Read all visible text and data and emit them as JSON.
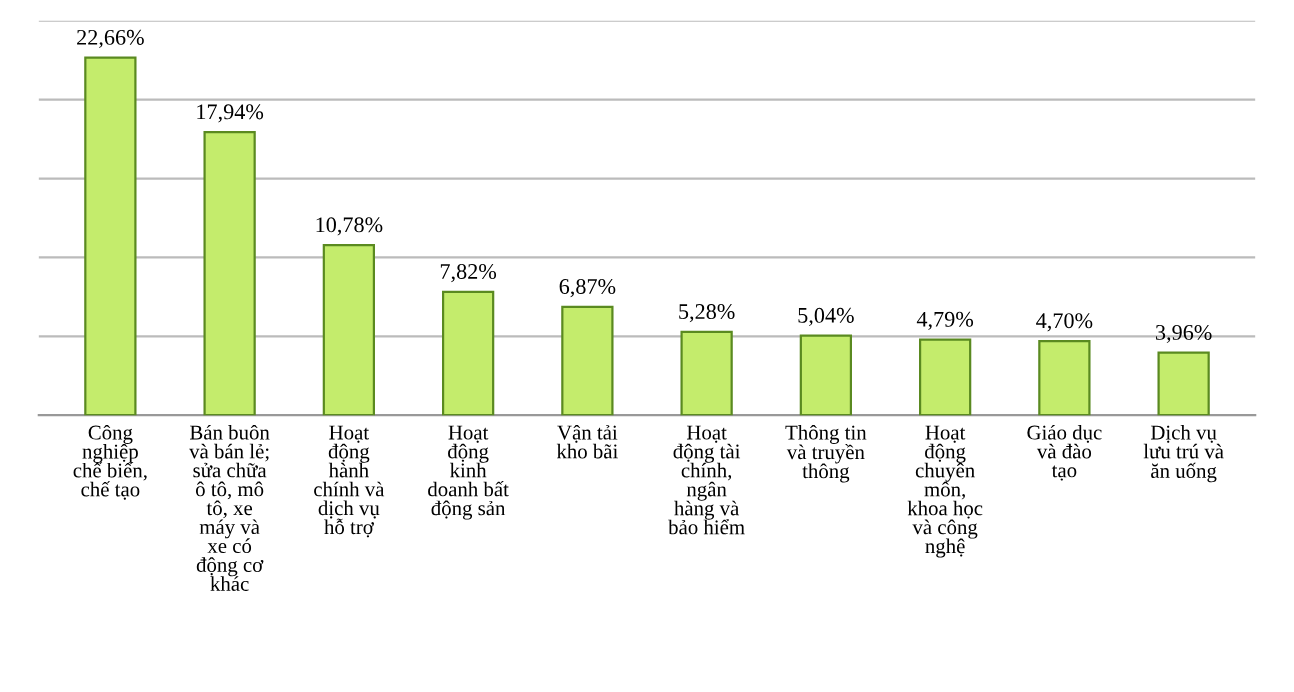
{
  "chart_data": {
    "type": "bar",
    "categories": [
      "Công\nnghiệp\nchế biến,\nchế tạo",
      "Bán buôn\nvà bán lẻ;\nsửa chữa\nô tô, mô\ntô, xe\nmáy và\nxe có\nđộng cơ\nkhác",
      "Hoạt\nđộng\nhành\nchính và\ndịch vụ\nhỗ trợ",
      "Hoạt\nđộng\nkinh\ndoanh bất\nđộng sản",
      "Vận tải\nkho bãi",
      "Hoạt\nđộng tài\nchính,\nngân\nhàng và\nbảo hiểm",
      "Thông tin\nvà truyền\nthông",
      "Hoạt\nđộng\nchuyên\nmôn,\nkhoa học\nvà công\nnghệ",
      "Giáo dục\nvà đào\ntạo",
      "Dịch vụ\nlưu trú và\năn uống"
    ],
    "values": [
      22.66,
      17.94,
      10.78,
      7.82,
      6.87,
      5.28,
      5.04,
      4.79,
      4.7,
      3.96
    ],
    "value_labels": [
      "22,66%",
      "17,94%",
      "10,78%",
      "7,82%",
      "6,87%",
      "5,28%",
      "5,04%",
      "4,79%",
      "4,70%",
      "3,96%"
    ],
    "color": "#c4ec6c",
    "ylim": [
      0,
      25
    ],
    "yticks": [
      {
        "value": 0,
        "label": null
      },
      {
        "value": 5,
        "label": null
      },
      {
        "value": 10,
        "label": null
      },
      {
        "value": 15,
        "label": null
      },
      {
        "value": 20,
        "label": null
      },
      {
        "value": 25,
        "label": null
      }
    ],
    "grid": "y",
    "tick_labels": "x"
  }
}
